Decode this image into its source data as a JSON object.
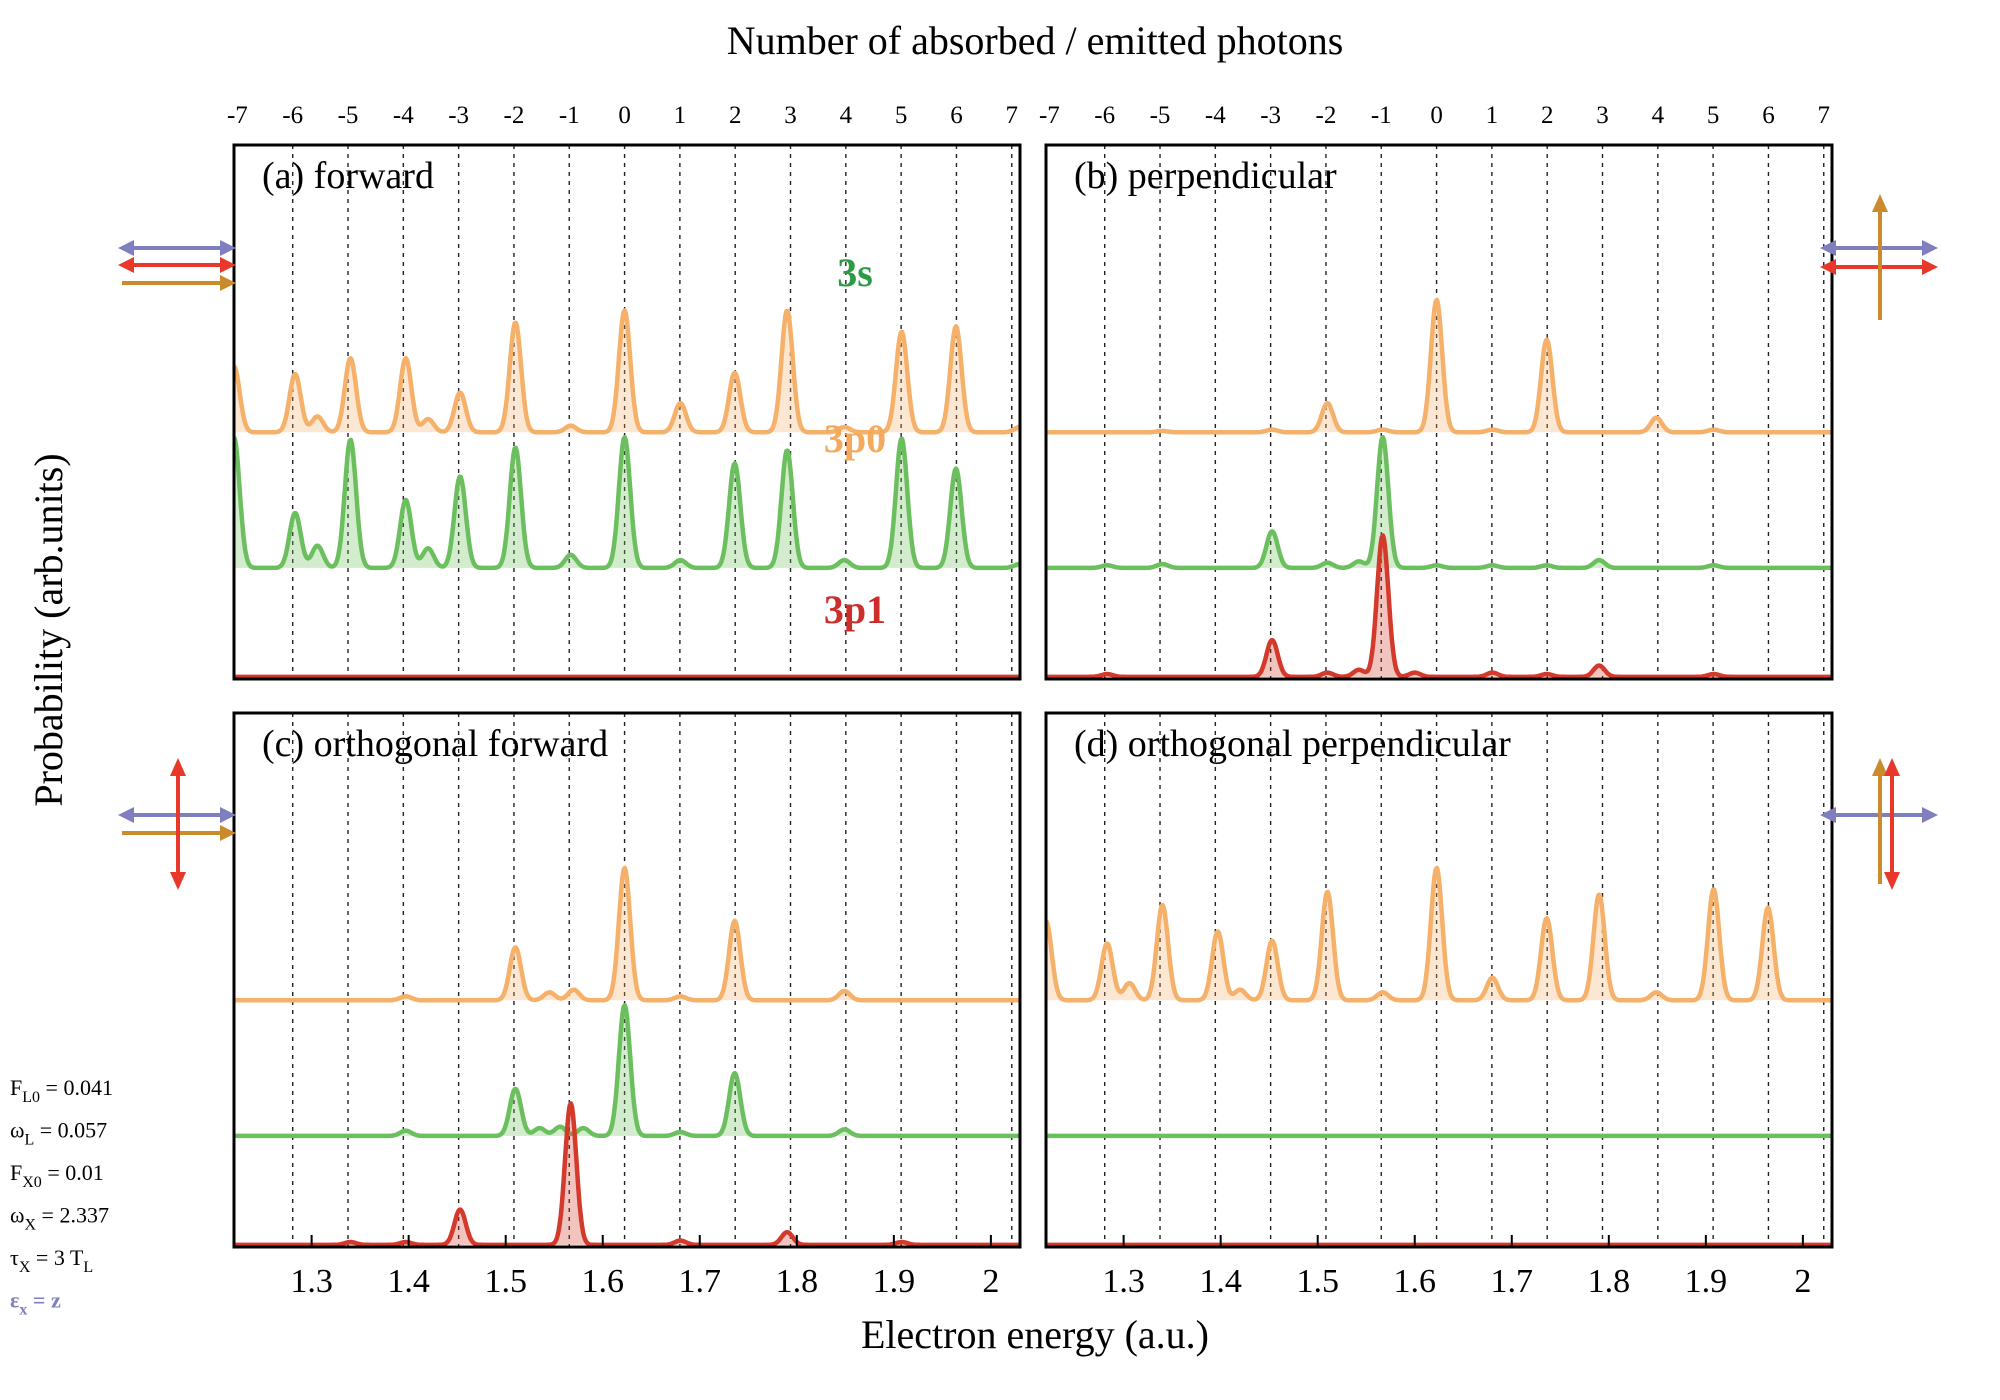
{
  "chart_data": {
    "type": "line",
    "top_axis_title": "Number of absorbed / emitted photons",
    "xlabel": "Electron energy (a.u.)",
    "ylabel": "Probability (arb.units)",
    "xlim": [
      1.22,
      2.03
    ],
    "x_ticks": [
      1.3,
      1.4,
      1.5,
      1.6,
      1.7,
      1.8,
      1.9,
      2
    ],
    "x_tick_labels": [
      "1.3",
      "1.4",
      "1.5",
      "1.6",
      "1.7",
      "1.8",
      "1.9",
      "2"
    ],
    "photon_energy": 0.057,
    "series_colors": {
      "3s": "#6cbf5e",
      "3p0": "#f5b06a",
      "3p1": "#d33a2c"
    },
    "series_label_colors": {
      "3s": "#2e9a45",
      "3p0": "#f5a95c",
      "3p1": "#cc2f2a"
    },
    "arrow_colors": {
      "x": "#7f7fc0",
      "laser_a": "#e8382a",
      "laser_b": "#c98b2c"
    },
    "series_labels": [
      "3s",
      "3p0",
      "3p1"
    ],
    "params": [
      {
        "main": "F",
        "sub": "L0",
        "rest": " = 0.041"
      },
      {
        "main": "ω",
        "sub": "L",
        "rest": " = 0.057"
      },
      {
        "main": "F",
        "sub": "X0",
        "rest": " = 0.01"
      },
      {
        "main": "ω",
        "sub": "X",
        "rest": " = 2.337"
      },
      {
        "main": "τ",
        "sub": "X",
        "rest": " = 3 T",
        "sub2": "L"
      },
      {
        "main": "ε",
        "sub": "x",
        "rest": " = z",
        "highlight": true
      }
    ],
    "panels": [
      {
        "label": "(a) forward",
        "photon_ticks": [
          -7,
          -6,
          -5,
          -4,
          -3,
          -2,
          -1,
          0,
          1,
          2,
          3,
          4,
          5,
          6,
          7
        ],
        "photon_center": 1.6225,
        "series": [
          {
            "name": "3s",
            "peaks": [
              [
                1.22,
                1.0
              ],
              [
                1.283,
                0.42
              ],
              [
                1.306,
                0.17
              ],
              [
                1.34,
                0.98
              ],
              [
                1.397,
                0.52
              ],
              [
                1.42,
                0.15
              ],
              [
                1.453,
                0.7
              ],
              [
                1.51,
                0.92
              ],
              [
                1.567,
                0.1
              ],
              [
                1.6225,
                1.0
              ],
              [
                1.68,
                0.06
              ],
              [
                1.736,
                0.8
              ],
              [
                1.79,
                0.9
              ],
              [
                1.849,
                0.06
              ],
              [
                1.908,
                0.99
              ],
              [
                1.964,
                0.76
              ],
              [
                2.03,
                0.03
              ]
            ]
          },
          {
            "name": "3p0",
            "peaks": [
              [
                1.22,
                0.5
              ],
              [
                1.283,
                0.44
              ],
              [
                1.306,
                0.12
              ],
              [
                1.34,
                0.56
              ],
              [
                1.397,
                0.56
              ],
              [
                1.42,
                0.1
              ],
              [
                1.453,
                0.3
              ],
              [
                1.51,
                0.83
              ],
              [
                1.567,
                0.05
              ],
              [
                1.6225,
                0.92
              ],
              [
                1.68,
                0.22
              ],
              [
                1.736,
                0.45
              ],
              [
                1.79,
                0.92
              ],
              [
                1.849,
                0.04
              ],
              [
                1.908,
                0.76
              ],
              [
                1.964,
                0.8
              ],
              [
                2.03,
                0.04
              ]
            ]
          },
          {
            "name": "3p1",
            "peaks": []
          }
        ]
      },
      {
        "label": "(b) perpendicular",
        "photon_ticks": [
          -7,
          -6,
          -5,
          -4,
          -3,
          -2,
          -1,
          0,
          1,
          2,
          3,
          4,
          5,
          6,
          7
        ],
        "photon_center": 1.6225,
        "series": [
          {
            "name": "3s",
            "peaks": [
              [
                1.283,
                0.02
              ],
              [
                1.34,
                0.03
              ],
              [
                1.453,
                0.28
              ],
              [
                1.51,
                0.04
              ],
              [
                1.5425,
                0.05
              ],
              [
                1.567,
                1.0
              ],
              [
                1.6225,
                0.02
              ],
              [
                1.68,
                0.02
              ],
              [
                1.736,
                0.02
              ],
              [
                1.79,
                0.06
              ],
              [
                1.908,
                0.02
              ]
            ]
          },
          {
            "name": "3p0",
            "peaks": [
              [
                1.34,
                0.01
              ],
              [
                1.453,
                0.02
              ],
              [
                1.51,
                0.22
              ],
              [
                1.567,
                0.02
              ],
              [
                1.6225,
                1.0
              ],
              [
                1.68,
                0.02
              ],
              [
                1.736,
                0.7
              ],
              [
                1.849,
                0.11
              ],
              [
                1.908,
                0.02
              ]
            ]
          },
          {
            "name": "3p1",
            "peaks": [
              [
                1.283,
                0.02
              ],
              [
                1.453,
                0.26
              ],
              [
                1.51,
                0.03
              ],
              [
                1.5425,
                0.05
              ],
              [
                1.567,
                1.0
              ],
              [
                1.6,
                0.03
              ],
              [
                1.68,
                0.03
              ],
              [
                1.736,
                0.02
              ],
              [
                1.79,
                0.08
              ],
              [
                1.908,
                0.02
              ]
            ]
          }
        ]
      },
      {
        "label": "(c) orthogonal forward",
        "photon_ticks": [],
        "photon_center": 1.6225,
        "series": [
          {
            "name": "3s",
            "peaks": [
              [
                1.397,
                0.04
              ],
              [
                1.51,
                0.36
              ],
              [
                1.535,
                0.06
              ],
              [
                1.556,
                0.07
              ],
              [
                1.58,
                0.06
              ],
              [
                1.6225,
                1.0
              ],
              [
                1.68,
                0.03
              ],
              [
                1.736,
                0.48
              ],
              [
                1.849,
                0.05
              ]
            ]
          },
          {
            "name": "3p0",
            "peaks": [
              [
                1.397,
                0.03
              ],
              [
                1.51,
                0.4
              ],
              [
                1.545,
                0.06
              ],
              [
                1.57,
                0.08
              ],
              [
                1.6225,
                1.0
              ],
              [
                1.68,
                0.03
              ],
              [
                1.736,
                0.6
              ],
              [
                1.849,
                0.07
              ]
            ]
          },
          {
            "name": "3p1",
            "peaks": [
              [
                1.34,
                0.02
              ],
              [
                1.397,
                0.02
              ],
              [
                1.453,
                0.25
              ],
              [
                1.567,
                1.0
              ],
              [
                1.68,
                0.03
              ],
              [
                1.79,
                0.09
              ],
              [
                1.908,
                0.02
              ]
            ]
          }
        ]
      },
      {
        "label": "(d) orthogonal perpendicular",
        "photon_ticks": [],
        "photon_center": 1.6225,
        "series": [
          {
            "name": "3s",
            "peaks": []
          },
          {
            "name": "3p0",
            "peaks": [
              [
                1.22,
                0.6
              ],
              [
                1.283,
                0.43
              ],
              [
                1.306,
                0.13
              ],
              [
                1.34,
                0.72
              ],
              [
                1.397,
                0.52
              ],
              [
                1.42,
                0.08
              ],
              [
                1.453,
                0.45
              ],
              [
                1.51,
                0.82
              ],
              [
                1.567,
                0.06
              ],
              [
                1.6225,
                1.0
              ],
              [
                1.68,
                0.17
              ],
              [
                1.736,
                0.62
              ],
              [
                1.79,
                0.8
              ],
              [
                1.849,
                0.06
              ],
              [
                1.908,
                0.84
              ],
              [
                1.964,
                0.7
              ]
            ]
          },
          {
            "name": "3p1",
            "peaks": []
          }
        ]
      }
    ]
  }
}
